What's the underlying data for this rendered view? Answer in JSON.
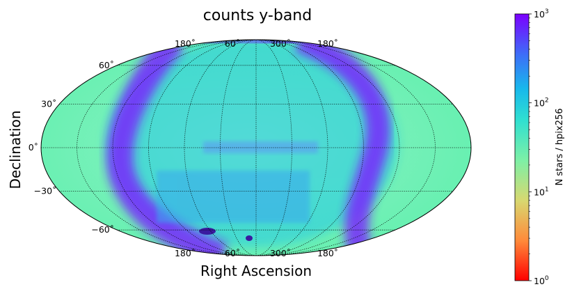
{
  "chart_data": {
    "type": "heatmap",
    "projection": "mollweide",
    "title": "counts y-band",
    "xlabel": "Right Ascension",
    "ylabel": "Declination",
    "x_tick_labels": [
      "180˚",
      "60˚",
      "300˚",
      "180˚"
    ],
    "y_ticks": [
      {
        "value": 60,
        "label": "60˚"
      },
      {
        "value": 30,
        "label": "30˚"
      },
      {
        "value": 0,
        "label": "0˚"
      },
      {
        "value": -30,
        "label": "−30˚"
      },
      {
        "value": -60,
        "label": "−60˚"
      }
    ],
    "grid": true,
    "colorbar": {
      "label": "N stars / hpix256",
      "scale": "log",
      "range": [
        1,
        1000
      ],
      "colormap": "rainbow",
      "ticks": [
        {
          "base": "10",
          "exp": "0"
        },
        {
          "base": "10",
          "exp": "1"
        },
        {
          "base": "10",
          "exp": "2"
        },
        {
          "base": "10",
          "exp": "3"
        }
      ]
    },
    "colors": {
      "high": "#7a1cff",
      "mid": "#14c6e6",
      "background": "#66f0b0",
      "low": "#ff1a00"
    }
  }
}
